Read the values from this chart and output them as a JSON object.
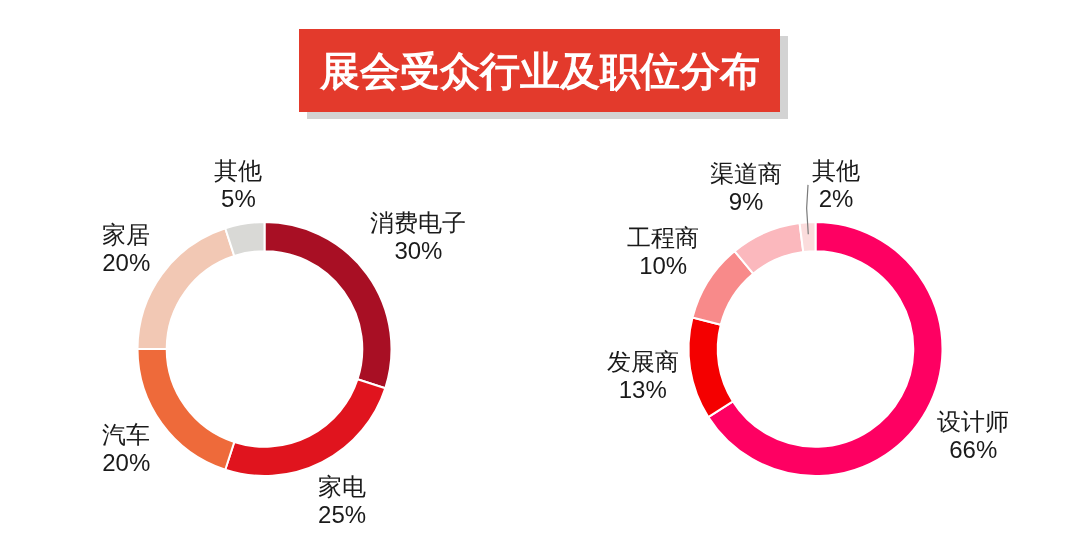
{
  "chart_data": [
    {
      "type": "donut",
      "title": "展会受众行业及职位分布",
      "categories": [
        "消费电子",
        "家电",
        "汽车",
        "家居",
        "其他"
      ],
      "values": [
        30,
        25,
        20,
        20,
        5
      ],
      "value_labels": [
        "30%",
        "25%",
        "20%",
        "20%",
        "5%"
      ],
      "colors": [
        "#a80f24",
        "#e0141e",
        "#ee6a3a",
        "#f2c8b4",
        "#d9d9d6"
      ]
    },
    {
      "type": "donut",
      "categories": [
        "设计师",
        "发展商",
        "工程商",
        "渠道商",
        "其他"
      ],
      "values": [
        66,
        13,
        10,
        9,
        2
      ],
      "value_labels": [
        "66%",
        "13%",
        "10%",
        "9%",
        "2%"
      ],
      "colors": [
        "#fe0062",
        "#f40000",
        "#f88a8a",
        "#fbb8bd",
        "#fbdcdc"
      ]
    }
  ]
}
